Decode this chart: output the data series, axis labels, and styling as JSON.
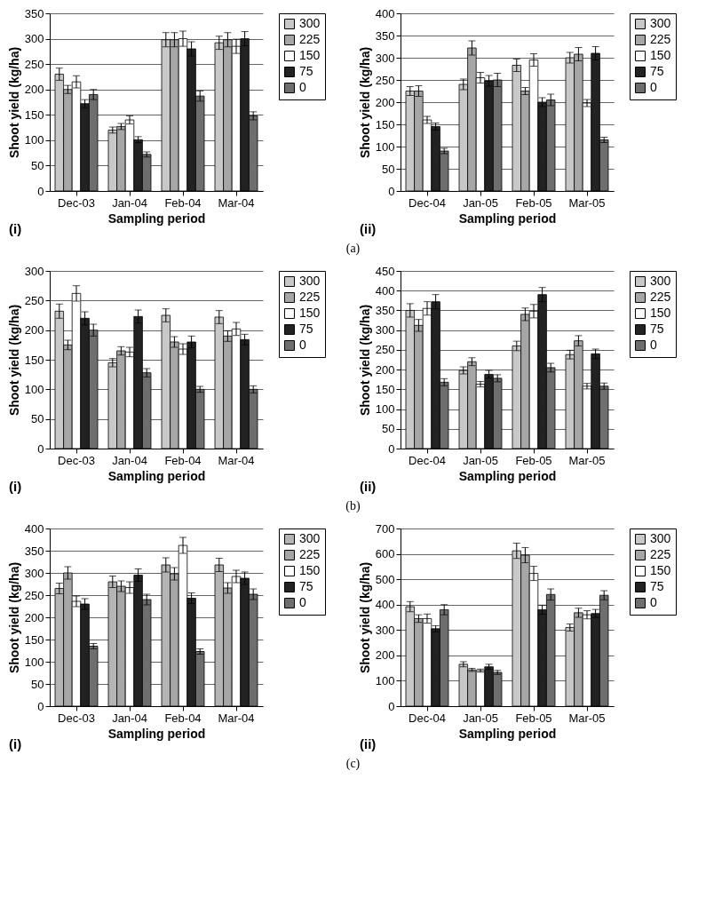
{
  "chart_data": [
    {
      "type": "bar",
      "xlabel": "Sampling period",
      "ylabel": "Shoot yield (kg/ha)",
      "annotations": [
        "(i)"
      ],
      "categories": [
        "Dec-03",
        "Jan-04",
        "Feb-04",
        "Mar-04"
      ],
      "ylim": [
        0,
        350
      ],
      "yticks": [
        0,
        50,
        100,
        150,
        200,
        250,
        300,
        350
      ],
      "grid": "y",
      "legend": "right",
      "series": [
        {
          "name": "300",
          "color": "#c8c8c8",
          "values": [
            230,
            120,
            298,
            292
          ],
          "errors": [
            12,
            6,
            14,
            13
          ]
        },
        {
          "name": "225",
          "color": "#a6a6a6",
          "values": [
            200,
            127,
            298,
            298
          ],
          "errors": [
            8,
            6,
            14,
            14
          ]
        },
        {
          "name": "150",
          "color": "#ffffff",
          "values": [
            215,
            140,
            300,
            285
          ],
          "errors": [
            12,
            8,
            15,
            14
          ]
        },
        {
          "name": "75",
          "color": "#222222",
          "values": [
            172,
            101,
            280,
            300
          ],
          "errors": [
            8,
            6,
            14,
            14
          ]
        },
        {
          "name": "0",
          "color": "#6e6e6e",
          "values": [
            190,
            72,
            187,
            148
          ],
          "errors": [
            10,
            5,
            10,
            8
          ]
        }
      ]
    },
    {
      "type": "bar",
      "xlabel": "Sampling period",
      "ylabel": "Shoot yield (kg/ha)",
      "annotations": [
        "(ii)",
        "(a)"
      ],
      "categories": [
        "Dec-04",
        "Jan-05",
        "Feb-05",
        "Mar-05"
      ],
      "ylim": [
        0,
        400
      ],
      "yticks": [
        0,
        50,
        100,
        150,
        200,
        250,
        300,
        350,
        400
      ],
      "grid": "y",
      "legend": "right",
      "series": [
        {
          "name": "300",
          "color": "#c8c8c8",
          "values": [
            225,
            240,
            283,
            300
          ],
          "errors": [
            10,
            12,
            14,
            12
          ]
        },
        {
          "name": "225",
          "color": "#a6a6a6",
          "values": [
            225,
            322,
            225,
            308
          ],
          "errors": [
            12,
            16,
            8,
            15
          ]
        },
        {
          "name": "150",
          "color": "#ffffff",
          "values": [
            160,
            255,
            295,
            198
          ],
          "errors": [
            8,
            12,
            14,
            8
          ]
        },
        {
          "name": "75",
          "color": "#222222",
          "values": [
            145,
            248,
            200,
            310
          ],
          "errors": [
            8,
            12,
            10,
            15
          ]
        },
        {
          "name": "0",
          "color": "#6e6e6e",
          "values": [
            90,
            250,
            205,
            115
          ],
          "errors": [
            6,
            15,
            13,
            6
          ]
        }
      ]
    },
    {
      "type": "bar",
      "xlabel": "Sampling period",
      "ylabel": "Shoot yield (kg/ha)",
      "annotations": [
        "(i)"
      ],
      "categories": [
        "Dec-03",
        "Jan-04",
        "Feb-04",
        "Mar-04"
      ],
      "ylim": [
        0,
        300
      ],
      "yticks": [
        0,
        50,
        100,
        150,
        200,
        250,
        300
      ],
      "grid": "y",
      "legend": "right",
      "series": [
        {
          "name": "300",
          "color": "#c8c8c8",
          "values": [
            232,
            145,
            225,
            222
          ],
          "errors": [
            12,
            7,
            11,
            11
          ]
        },
        {
          "name": "225",
          "color": "#a6a6a6",
          "values": [
            175,
            165,
            180,
            190
          ],
          "errors": [
            8,
            7,
            9,
            9
          ]
        },
        {
          "name": "150",
          "color": "#ffffff",
          "values": [
            262,
            163,
            168,
            202
          ],
          "errors": [
            13,
            8,
            9,
            11
          ]
        },
        {
          "name": "75",
          "color": "#222222",
          "values": [
            220,
            223,
            180,
            184
          ],
          "errors": [
            11,
            11,
            10,
            9
          ]
        },
        {
          "name": "0",
          "color": "#6e6e6e",
          "values": [
            200,
            128,
            100,
            100
          ],
          "errors": [
            10,
            7,
            5,
            6
          ]
        }
      ]
    },
    {
      "type": "bar",
      "xlabel": "Sampling period",
      "ylabel": "Shoot yield (kg/ha)",
      "annotations": [
        "(ii)",
        "(b)"
      ],
      "categories": [
        "Dec-04",
        "Jan-05",
        "Feb-05",
        "Mar-05"
      ],
      "ylim": [
        0,
        450
      ],
      "yticks": [
        0,
        50,
        100,
        150,
        200,
        250,
        300,
        350,
        400,
        450
      ],
      "grid": "y",
      "legend": "right",
      "series": [
        {
          "name": "300",
          "color": "#c8c8c8",
          "values": [
            350,
            198,
            260,
            238
          ],
          "errors": [
            17,
            9,
            12,
            11
          ]
        },
        {
          "name": "225",
          "color": "#a6a6a6",
          "values": [
            312,
            220,
            340,
            273
          ],
          "errors": [
            15,
            10,
            16,
            13
          ]
        },
        {
          "name": "150",
          "color": "#ffffff",
          "values": [
            355,
            163,
            348,
            158
          ],
          "errors": [
            17,
            7,
            17,
            7
          ]
        },
        {
          "name": "75",
          "color": "#222222",
          "values": [
            372,
            188,
            390,
            240
          ],
          "errors": [
            18,
            10,
            18,
            12
          ]
        },
        {
          "name": "0",
          "color": "#6e6e6e",
          "values": [
            168,
            178,
            205,
            158
          ],
          "errors": [
            9,
            9,
            11,
            8
          ]
        }
      ]
    },
    {
      "type": "bar",
      "xlabel": "Sampling period",
      "ylabel": "Shoot yield (kg/ha)",
      "annotations": [
        "(i)"
      ],
      "categories": [
        "Dec-03",
        "Jan-04",
        "Feb-04",
        "Mar-04"
      ],
      "ylim": [
        0,
        400
      ],
      "yticks": [
        0,
        50,
        100,
        150,
        200,
        250,
        300,
        350,
        400
      ],
      "grid": "y",
      "legend": "right",
      "series": [
        {
          "name": "300",
          "color": "#b4b4b4",
          "values": [
            265,
            280,
            318,
            318
          ],
          "errors": [
            12,
            13,
            16,
            15
          ]
        },
        {
          "name": "225",
          "color": "#a6a6a6",
          "values": [
            300,
            270,
            298,
            266
          ],
          "errors": [
            14,
            12,
            14,
            12
          ]
        },
        {
          "name": "150",
          "color": "#ffffff",
          "values": [
            236,
            267,
            362,
            292
          ],
          "errors": [
            12,
            13,
            18,
            14
          ]
        },
        {
          "name": "75",
          "color": "#222222",
          "values": [
            230,
            295,
            243,
            288
          ],
          "errors": [
            12,
            14,
            12,
            14
          ]
        },
        {
          "name": "0",
          "color": "#6e6e6e",
          "values": [
            135,
            240,
            123,
            252
          ],
          "errors": [
            6,
            12,
            6,
            12
          ]
        }
      ]
    },
    {
      "type": "bar",
      "xlabel": "Sampling period",
      "ylabel": "Shoot yield (kg/ha)",
      "annotations": [
        "(ii)",
        "(c)"
      ],
      "categories": [
        "Dec-04",
        "Jan-05",
        "Feb-05",
        "Mar-05"
      ],
      "ylim": [
        0,
        700
      ],
      "yticks": [
        0,
        100,
        200,
        300,
        400,
        500,
        600,
        700
      ],
      "grid": "y",
      "legend": "right",
      "series": [
        {
          "name": "300",
          "color": "#c8c8c8",
          "values": [
            392,
            165,
            612,
            310
          ],
          "errors": [
            20,
            10,
            30,
            14
          ]
        },
        {
          "name": "225",
          "color": "#a6a6a6",
          "values": [
            345,
            143,
            595,
            368
          ],
          "errors": [
            15,
            6,
            30,
            18
          ]
        },
        {
          "name": "150",
          "color": "#ffffff",
          "values": [
            345,
            140,
            523,
            360
          ],
          "errors": [
            18,
            6,
            28,
            16
          ]
        },
        {
          "name": "75",
          "color": "#222222",
          "values": [
            305,
            155,
            380,
            365
          ],
          "errors": [
            12,
            10,
            18,
            16
          ]
        },
        {
          "name": "0",
          "color": "#6e6e6e",
          "values": [
            380,
            133,
            440,
            437
          ],
          "errors": [
            20,
            8,
            22,
            18
          ]
        }
      ]
    }
  ]
}
